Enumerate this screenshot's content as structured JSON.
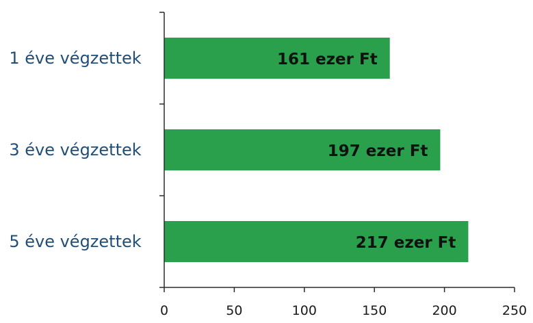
{
  "chart_data": {
    "type": "bar",
    "orientation": "horizontal",
    "categories": [
      "1 éve végzettek",
      "3 éve végzettek",
      "5 éve végzettek"
    ],
    "values": [
      161,
      197,
      217
    ],
    "data_labels": [
      "161 ezer Ft",
      "197 ezer Ft",
      "217 ezer Ft"
    ],
    "xlim": [
      0,
      250
    ],
    "xticks": [
      "0",
      "50",
      "100",
      "150",
      "200",
      "250"
    ],
    "title": "",
    "xlabel": "",
    "ylabel": "",
    "grid": false,
    "bar_color": "#2aa04d"
  }
}
